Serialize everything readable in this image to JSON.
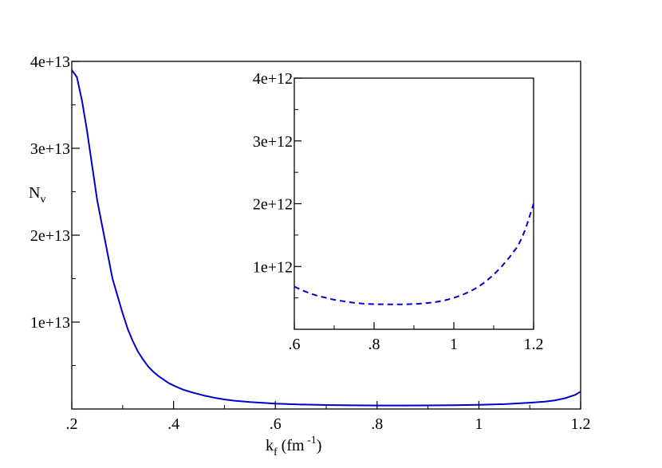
{
  "chart_data": [
    {
      "type": "line",
      "xlim": [
        0.2,
        1.2
      ],
      "ylim": [
        0,
        40000000000000
      ],
      "x_ticks": [
        0.2,
        0.4,
        0.6,
        0.8,
        1.0,
        1.2
      ],
      "x_tick_labels": [
        ".2",
        ".4",
        ".6",
        ".8",
        "1",
        "1.2"
      ],
      "y_ticks": [
        10000000000000,
        20000000000000,
        30000000000000,
        40000000000000
      ],
      "y_tick_labels": [
        "1e+13",
        "2e+13",
        "3e+13",
        "4e+13"
      ],
      "xlabel": {
        "main": "k",
        "sub": "f",
        "rest": "  (fm",
        "sup": " -1",
        "close": ")"
      },
      "ylabel": {
        "main": "N",
        "sub": "v"
      },
      "grid": false,
      "color": "#0000cc",
      "line_style": "solid",
      "x": [
        0.2,
        0.21,
        0.22,
        0.23,
        0.24,
        0.25,
        0.26,
        0.27,
        0.28,
        0.29,
        0.3,
        0.31,
        0.32,
        0.33,
        0.34,
        0.35,
        0.36,
        0.37,
        0.38,
        0.39,
        0.4,
        0.42,
        0.44,
        0.46,
        0.48,
        0.5,
        0.52,
        0.55,
        0.6,
        0.65,
        0.7,
        0.75,
        0.8,
        0.85,
        0.9,
        0.95,
        1.0,
        1.05,
        1.1,
        1.13,
        1.15,
        1.17,
        1.19,
        1.2
      ],
      "values": [
        39000000000000,
        38200000000000,
        35500000000000,
        32000000000000,
        28000000000000,
        24000000000000,
        21000000000000,
        18000000000000,
        15000000000000,
        13000000000000,
        11000000000000,
        9200000000000,
        7800000000000,
        6600000000000,
        5700000000000,
        4900000000000,
        4300000000000,
        3800000000000,
        3400000000000,
        3000000000000,
        2700000000000,
        2200000000000,
        1850000000000,
        1550000000000,
        1300000000000,
        1100000000000,
        950000000000,
        800000000000,
        620000000000,
        520000000000,
        460000000000,
        420000000000,
        400000000000,
        400000000000,
        410000000000,
        430000000000,
        480000000000,
        560000000000,
        720000000000,
        850000000000,
        1000000000000,
        1250000000000,
        1650000000000,
        2000000000000
      ]
    },
    {
      "type": "line",
      "inset": true,
      "xlim": [
        0.6,
        1.2
      ],
      "ylim": [
        0,
        4000000000000
      ],
      "x_ticks": [
        0.6,
        0.8,
        1.0,
        1.2
      ],
      "x_tick_labels": [
        ".6",
        ".8",
        "1",
        "1.2"
      ],
      "y_ticks": [
        1000000000000,
        2000000000000,
        3000000000000,
        4000000000000
      ],
      "y_tick_labels": [
        "1e+12",
        "2e+12",
        "3e+12",
        "4e+12"
      ],
      "grid": false,
      "color": "#0000cc",
      "line_style": "dashed",
      "x": [
        0.6,
        0.62,
        0.64,
        0.66,
        0.68,
        0.7,
        0.72,
        0.74,
        0.76,
        0.78,
        0.8,
        0.82,
        0.84,
        0.86,
        0.88,
        0.9,
        0.92,
        0.94,
        0.96,
        0.98,
        1.0,
        1.02,
        1.04,
        1.06,
        1.08,
        1.1,
        1.12,
        1.14,
        1.16,
        1.17,
        1.18,
        1.19,
        1.2
      ],
      "values": [
        680000000000,
        620000000000,
        570000000000,
        530000000000,
        500000000000,
        470000000000,
        450000000000,
        430000000000,
        415000000000,
        405000000000,
        400000000000,
        398000000000,
        396000000000,
        396000000000,
        398000000000,
        402000000000,
        410000000000,
        422000000000,
        440000000000,
        465000000000,
        500000000000,
        545000000000,
        600000000000,
        670000000000,
        760000000000,
        870000000000,
        1000000000000,
        1150000000000,
        1320000000000,
        1450000000000,
        1600000000000,
        1800000000000,
        2000000000000
      ]
    }
  ]
}
